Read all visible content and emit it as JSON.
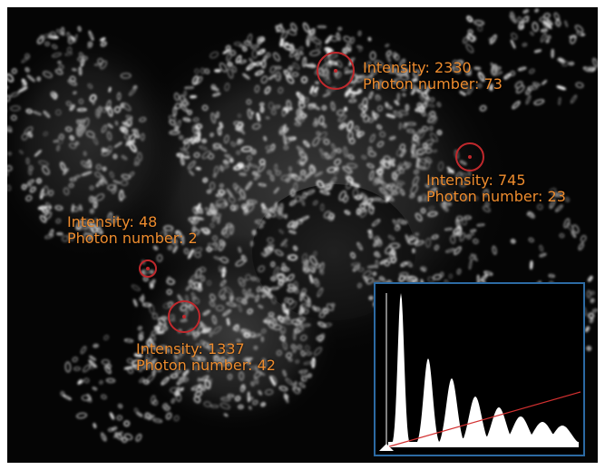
{
  "figure": {
    "markers": [
      {
        "id": "m1",
        "intensity_label": "Intensity: 2330",
        "photon_label": "Photon number: 73"
      },
      {
        "id": "m2",
        "intensity_label": "Intensity: 745",
        "photon_label": "Photon number: 23"
      },
      {
        "id": "m3",
        "intensity_label": "Intensity: 48",
        "photon_label": "Photon number: 2"
      },
      {
        "id": "m4",
        "intensity_label": "Intensity: 1337",
        "photon_label": "Photon number: 42"
      }
    ],
    "colors": {
      "label": "#ee8c2e",
      "marker_circle": "#c0282c",
      "inset_border": "#2c6aa3",
      "histogram_fill": "#ffffff",
      "fit_line": "#d23030"
    }
  }
}
